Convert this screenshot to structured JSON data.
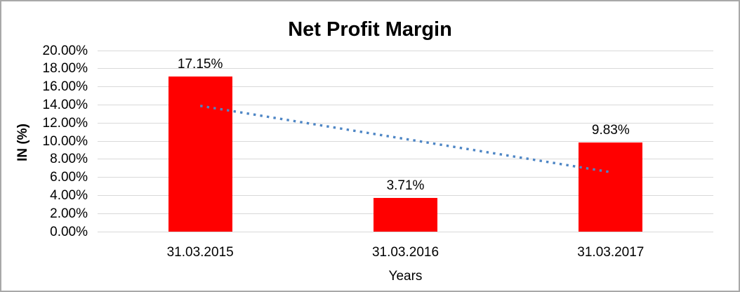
{
  "frame": {
    "background": "#ffffff",
    "border_color": "#a9a9a9"
  },
  "chart_data": {
    "type": "bar",
    "title": "Net Profit Margin",
    "xlabel": "Years",
    "ylabel": "IN (%)",
    "categories": [
      "31.03.2015",
      "31.03.2016",
      "31.03.2017"
    ],
    "values": [
      17.15,
      3.71,
      9.83
    ],
    "data_labels": [
      "17.15%",
      "3.71%",
      "9.83%"
    ],
    "yticks": [
      "0.00%",
      "2.00%",
      "4.00%",
      "6.00%",
      "8.00%",
      "10.00%",
      "12.00%",
      "14.00%",
      "16.00%",
      "18.00%",
      "20.00%"
    ],
    "ylim": [
      0,
      20
    ],
    "grid": true,
    "legend": false,
    "bar_color": "#ff0000",
    "gridline_color": "#d9d9d9",
    "text_color": "#000000",
    "trendline": {
      "type": "linear",
      "style": "dotted",
      "color": "#4e86c5",
      "start_value": 13.89,
      "end_value": 6.57
    }
  }
}
